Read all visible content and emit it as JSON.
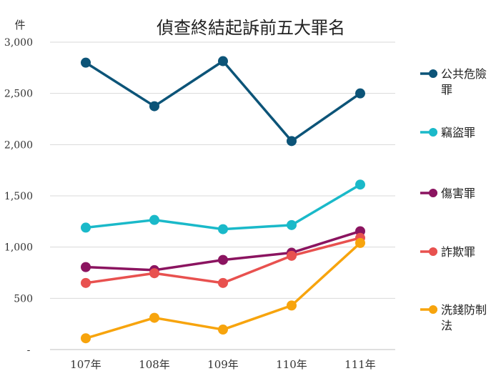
{
  "chart_data": {
    "type": "line",
    "title": "偵查終結起訴前五大罪名",
    "unit_label": "件",
    "xlabel": "",
    "ylabel": "",
    "categories": [
      "107年",
      "108年",
      "109年",
      "110年",
      "111年"
    ],
    "ylim": [
      0,
      3000
    ],
    "yticks": [
      0,
      500,
      1000,
      1500,
      2000,
      2500,
      3000
    ],
    "ytick_labels": [
      "-",
      "500",
      "1,000",
      "1,500",
      "2,000",
      "2,500",
      "3,000"
    ],
    "grid": true,
    "legend_position": "right",
    "series": [
      {
        "name": "公共危險罪",
        "color": "#0c5478",
        "values": [
          2800,
          2375,
          2815,
          2035,
          2500
        ]
      },
      {
        "name": "竊盜罪",
        "color": "#1ab9c9",
        "values": [
          1190,
          1265,
          1175,
          1215,
          1610
        ]
      },
      {
        "name": "傷害罪",
        "color": "#8b1460",
        "values": [
          805,
          775,
          875,
          945,
          1155
        ]
      },
      {
        "name": "詐欺罪",
        "color": "#e8514f",
        "values": [
          650,
          745,
          650,
          915,
          1090
        ]
      },
      {
        "name": "洗錢防制法",
        "color": "#f7a40d",
        "values": [
          110,
          310,
          195,
          430,
          1040
        ]
      }
    ]
  }
}
